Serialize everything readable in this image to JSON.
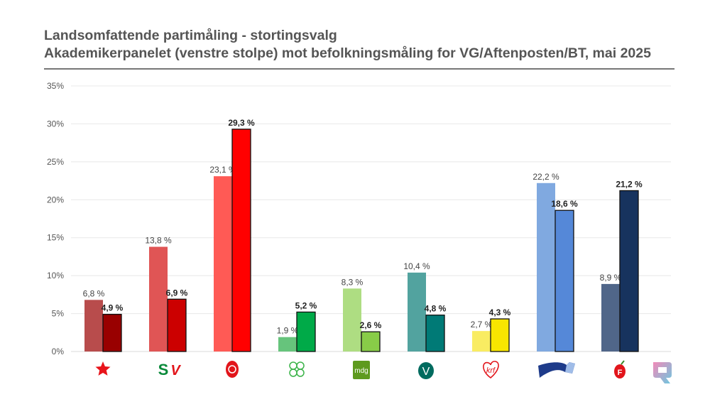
{
  "chart_data": {
    "type": "bar",
    "title": "Landsomfattende partimåling - stortingsvalg",
    "subtitle": "Akademikerpanelet (venstre stolpe) mot befolkningsmåling for VG/Aftenposten/BT, mai 2025",
    "categories": [
      "rodt-logo",
      "sv-logo",
      "ap-logo",
      "sp-logo",
      "mdg-logo",
      "venstre-logo",
      "krf-logo",
      "hoyre-logo",
      "frp-logo"
    ],
    "category_logo_text": {
      "sv": "SV",
      "mdg": "mdg",
      "venstre": "V",
      "krf": "krf",
      "frp": "F"
    },
    "series": [
      {
        "values": [
          6.8,
          13.8,
          23.1,
          1.9,
          8.3,
          10.4,
          2.7,
          22.2,
          8.9
        ],
        "labels": [
          "6,8 %",
          "13,8 %",
          "23,1 %",
          "1,9 %",
          "8,3 %",
          "10,4 %",
          "2,7 %",
          "22,2 %",
          "8,9 %"
        ],
        "colors": [
          "#b84c4c",
          "#e05555",
          "#ff5a55",
          "#66c47c",
          "#aedd82",
          "#52a39f",
          "#f9ec62",
          "#80a9e0",
          "#506689"
        ]
      },
      {
        "values": [
          4.9,
          6.9,
          29.3,
          5.2,
          2.6,
          4.8,
          4.3,
          18.6,
          21.2
        ],
        "labels": [
          "4,9 %",
          "6,9 %",
          "29,3 %",
          "5,2 %",
          "2,6 %",
          "4,8 %",
          "4,3 %",
          "18,6 %",
          "21,2 %"
        ],
        "colors": [
          "#990000",
          "#cc0000",
          "#ff0000",
          "#00aa48",
          "#88cc48",
          "#007a76",
          "#f8e600",
          "#5588d8",
          "#17335e"
        ]
      }
    ],
    "ylim": [
      0,
      35
    ],
    "yticks": [
      0,
      5,
      10,
      15,
      20,
      25,
      30,
      35
    ],
    "ytick_labels": [
      "0%",
      "5%",
      "10%",
      "15%",
      "20%",
      "25%",
      "30%",
      "35%"
    ],
    "grid": true,
    "legend": "none"
  },
  "brand_logo": "q-logo"
}
